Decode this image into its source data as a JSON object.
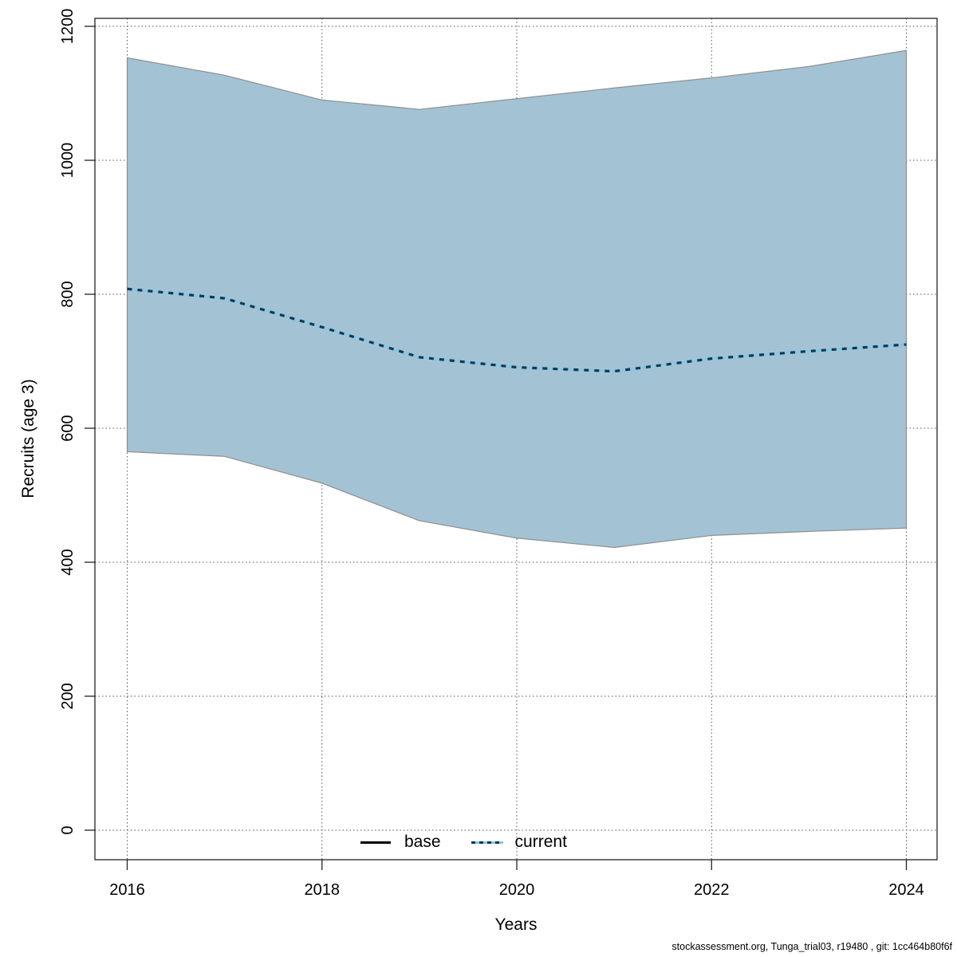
{
  "figure": {
    "ylabel": "Recruits (age 3)",
    "xlabel": "Years",
    "footer": "stockassessment.org, Tunga_trial03, r19480 , git: 1cc464b80f6f"
  },
  "legend": {
    "base_label": "base",
    "current_label": "current"
  },
  "colors": {
    "band_fill": "#A3C3D4",
    "band_border": "#8F8F8F",
    "current_dark": "#14384E",
    "current_light": "#85C8E8",
    "base_line": "#000000",
    "grid": "#555555",
    "axis": "#222222"
  },
  "chart_data": {
    "type": "area",
    "title": "",
    "xlabel": "Years",
    "ylabel": "Recruits (age 3)",
    "x": [
      2016,
      2017,
      2018,
      2019,
      2020,
      2021,
      2022,
      2023,
      2024
    ],
    "series": [
      {
        "name": "current",
        "style": "dotted",
        "values": [
          808,
          794,
          751,
          706,
          691,
          685,
          704,
          715,
          725
        ]
      },
      {
        "name": "base",
        "style": "solid",
        "visible_separately": false,
        "note": "coincides with current line in plot"
      }
    ],
    "band": {
      "name": "confidence-interval",
      "upper": [
        1153,
        1127,
        1090,
        1076,
        1092,
        1108,
        1123,
        1140,
        1164
      ],
      "lower": [
        565,
        558,
        518,
        462,
        436,
        422,
        440,
        446,
        451
      ]
    },
    "xticks": [
      2016,
      2018,
      2020,
      2022,
      2024
    ],
    "yticks": [
      0,
      200,
      400,
      600,
      800,
      1000,
      1200
    ],
    "xlim": [
      2016,
      2024
    ],
    "ylim": [
      0,
      1200
    ],
    "grid": true,
    "legend_position": "bottom-center"
  }
}
